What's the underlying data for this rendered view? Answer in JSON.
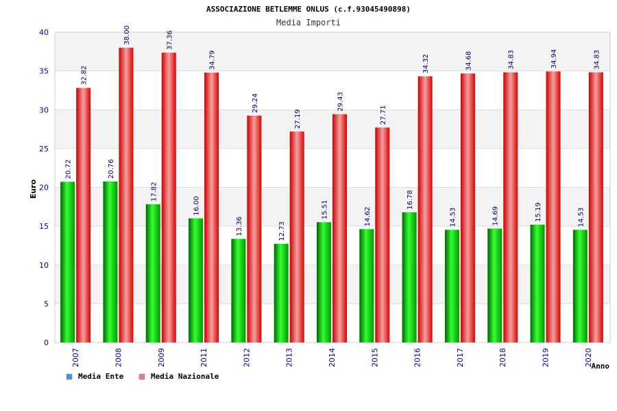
{
  "chart_data": {
    "type": "bar",
    "title": "ASSOCIAZIONE BETLEMME ONLUS (c.f.93045490898)",
    "subtitle": "Media Importi",
    "xlabel": "Anno",
    "ylabel": "Euro",
    "ylim": [
      0,
      40
    ],
    "yticks": [
      0,
      5,
      10,
      15,
      20,
      25,
      30,
      35,
      40
    ],
    "grid": true,
    "legend_position": "bottom-left",
    "categories": [
      "2007",
      "2008",
      "2009",
      "2011",
      "2012",
      "2013",
      "2014",
      "2015",
      "2016",
      "2017",
      "2018",
      "2019",
      "2020"
    ],
    "series": [
      {
        "name": "Media Ente",
        "color": "#00cc00",
        "legend_color": "#4a90e2",
        "values": [
          20.72,
          20.76,
          17.82,
          16.0,
          13.36,
          12.73,
          15.51,
          14.62,
          16.78,
          14.53,
          14.69,
          15.19,
          14.53
        ],
        "labels": [
          "20.72",
          "20.76",
          "17.82",
          "16.00",
          "13.36",
          "12.73",
          "15.51",
          "14.62",
          "16.78",
          "14.53",
          "14.69",
          "15.19",
          "14.53"
        ]
      },
      {
        "name": "Media Nazionale",
        "color": "#ee1111",
        "legend_color": "#e07aa8",
        "values": [
          32.82,
          38.0,
          37.36,
          34.79,
          29.24,
          27.19,
          29.43,
          27.71,
          34.32,
          34.68,
          34.83,
          34.94,
          34.83
        ],
        "labels": [
          "32.82",
          "38.00",
          "37.36",
          "34.79",
          "29.24",
          "27.19",
          "29.43",
          "27.71",
          "34.32",
          "34.68",
          "34.83",
          "34.94",
          "34.83"
        ]
      }
    ]
  }
}
